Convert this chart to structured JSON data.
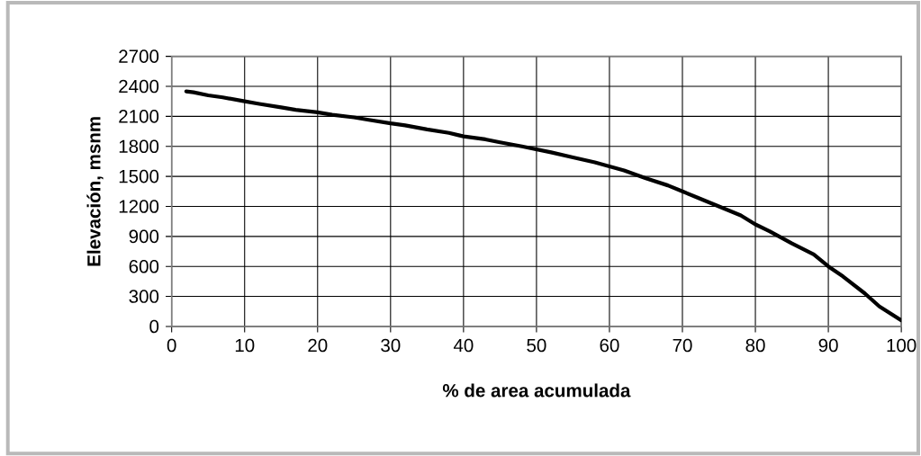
{
  "chart_data": {
    "type": "line",
    "xlabel": "% de area acumulada",
    "ylabel": "Elevación, msnm",
    "x": [
      2,
      3,
      5,
      7,
      10,
      12,
      15,
      17,
      20,
      22,
      25,
      27,
      30,
      32,
      35,
      38,
      40,
      43,
      45,
      48,
      50,
      52,
      55,
      58,
      60,
      62,
      65,
      68,
      70,
      72,
      75,
      78,
      80,
      82,
      85,
      88,
      90,
      92,
      95,
      97,
      100
    ],
    "values": [
      2350,
      2340,
      2310,
      2290,
      2250,
      2225,
      2190,
      2165,
      2140,
      2115,
      2090,
      2065,
      2030,
      2010,
      1970,
      1935,
      1900,
      1870,
      1840,
      1800,
      1770,
      1740,
      1690,
      1640,
      1600,
      1560,
      1480,
      1410,
      1350,
      1290,
      1200,
      1110,
      1020,
      950,
      830,
      720,
      600,
      500,
      330,
      200,
      60
    ],
    "color": "#000000",
    "line_style": "solid",
    "marker": "none",
    "xlim": [
      0,
      100
    ],
    "xticks": [
      0,
      10,
      20,
      30,
      40,
      50,
      60,
      70,
      80,
      90,
      100
    ],
    "ylim": [
      0,
      2700
    ],
    "yticks": [
      0,
      300,
      600,
      900,
      1200,
      1500,
      1800,
      2100,
      2400,
      2700
    ],
    "grid": true
  }
}
